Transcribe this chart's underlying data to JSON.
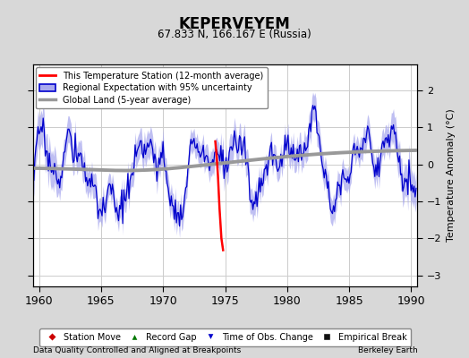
{
  "title": "KEPERVEYEM",
  "subtitle": "67.833 N, 166.167 E (Russia)",
  "ylabel": "Temperature Anomaly (°C)",
  "xlim": [
    1959.5,
    1990.5
  ],
  "ylim": [
    -3.3,
    2.7
  ],
  "yticks": [
    -3,
    -2,
    -1,
    0,
    1,
    2
  ],
  "xticks": [
    1960,
    1965,
    1970,
    1975,
    1980,
    1985,
    1990
  ],
  "bg_color": "#d8d8d8",
  "plot_bg_color": "#ffffff",
  "station_line_color": "#ff0000",
  "regional_line_color": "#0000cc",
  "regional_fill_color": "#aaaaee",
  "global_line_color": "#999999",
  "footer_left": "Data Quality Controlled and Aligned at Breakpoints",
  "footer_right": "Berkeley Earth",
  "legend_labels": [
    "This Temperature Station (12-month average)",
    "Regional Expectation with 95% uncertainty",
    "Global Land (5-year average)"
  ],
  "legend2_labels": [
    "Station Move",
    "Record Gap",
    "Time of Obs. Change",
    "Empirical Break"
  ]
}
